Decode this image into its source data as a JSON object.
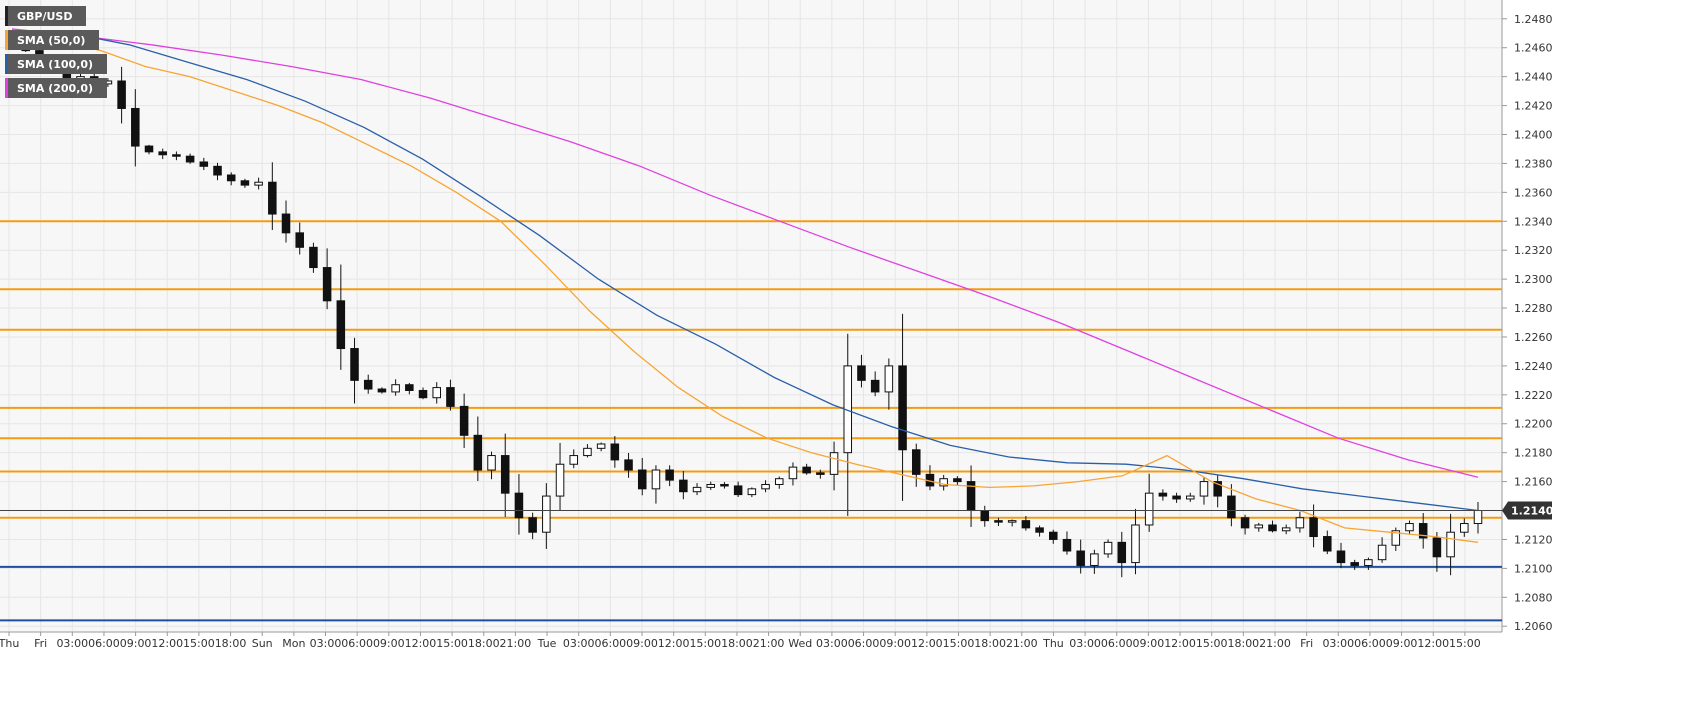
{
  "chart_data": {
    "type": "candlestick",
    "symbol": "GBP/USD",
    "price_axis": {
      "min": 1.2056,
      "max": 1.2493,
      "ticks": [
        "1.2480",
        "1.2460",
        "1.2440",
        "1.2420",
        "1.2400",
        "1.2380",
        "1.2360",
        "1.2340",
        "1.2320",
        "1.2300",
        "1.2280",
        "1.2260",
        "1.2240",
        "1.2220",
        "1.2200",
        "1.2180",
        "1.2160",
        "1.2140",
        "1.2120",
        "1.2100",
        "1.2080",
        "1.2060"
      ],
      "current_price_label": "1.21401",
      "current_price": 1.214
    },
    "time_axis": {
      "labels": [
        "Thu",
        "Fri",
        "03:00",
        "06:00",
        "09:00",
        "12:00",
        "15:00",
        "18:00",
        "Sun",
        "Mon",
        "03:00",
        "06:00",
        "09:00",
        "12:00",
        "15:00",
        "18:00",
        "21:00",
        "Tue",
        "03:00",
        "06:00",
        "09:00",
        "12:00",
        "15:00",
        "18:00",
        "21:00",
        "Wed",
        "03:00",
        "06:00",
        "09:00",
        "12:00",
        "15:00",
        "18:00",
        "21:00",
        "Thu",
        "03:00",
        "06:00",
        "09:00",
        "12:00",
        "15:00",
        "18:00",
        "21:00",
        "Fri",
        "03:00",
        "06:00",
        "09:00",
        "12:00",
        "15:00"
      ]
    },
    "legend": [
      {
        "label": "GBP/USD",
        "color": "#222222"
      },
      {
        "label": "SMA (50,0)",
        "color": "#f7a535"
      },
      {
        "label": "SMA (100,0)",
        "color": "#2a5fa8"
      },
      {
        "label": "SMA (200,0)",
        "color": "#e040e0"
      }
    ],
    "horizontal_levels": [
      {
        "price": 1.234,
        "color": "#f39c12"
      },
      {
        "price": 1.2293,
        "color": "#f39c12"
      },
      {
        "price": 1.2265,
        "color": "#f39c12"
      },
      {
        "price": 1.2211,
        "color": "#f39c12"
      },
      {
        "price": 1.219,
        "color": "#f39c12"
      },
      {
        "price": 1.2167,
        "color": "#f39c12"
      },
      {
        "price": 1.2135,
        "color": "#f39c12"
      },
      {
        "price": 1.2101,
        "color": "#1f4e9c"
      },
      {
        "price": 1.2064,
        "color": "#1f4e9c"
      }
    ],
    "close_series": [
      1.2462,
      1.2458,
      1.2452,
      1.2447,
      1.2436,
      1.244,
      1.2435,
      1.2437,
      1.2418,
      1.2392,
      1.2388,
      1.2386,
      1.2385,
      1.2381,
      1.2378,
      1.2372,
      1.2368,
      1.2365,
      1.2367,
      1.2345,
      1.2332,
      1.2322,
      1.2308,
      1.2285,
      1.2252,
      1.223,
      1.2224,
      1.2222,
      1.2227,
      1.2223,
      1.2218,
      1.2225,
      1.2212,
      1.2192,
      1.2168,
      1.2178,
      1.2152,
      1.2135,
      1.2125,
      1.215,
      1.2172,
      1.2178,
      1.2183,
      1.2186,
      1.2175,
      1.2168,
      1.2155,
      1.2168,
      1.2161,
      1.2153,
      1.2156,
      1.2158,
      1.2157,
      1.2151,
      1.2155,
      1.2158,
      1.2162,
      1.217,
      1.2166,
      1.2165,
      1.218,
      1.224,
      1.223,
      1.2222,
      1.224,
      1.2182,
      1.2165,
      1.2157,
      1.2162,
      1.216,
      1.214,
      1.2133,
      1.2132,
      1.2133,
      1.2128,
      1.2125,
      1.212,
      1.2112,
      1.2102,
      1.211,
      1.2118,
      1.2104,
      1.213,
      1.2152,
      1.215,
      1.2148,
      1.215,
      1.216,
      1.215,
      1.2135,
      1.2128,
      1.213,
      1.2126,
      1.2128,
      1.2135,
      1.2122,
      1.2112,
      1.2104,
      1.2102,
      1.2106,
      1.2116,
      1.2126,
      1.2131,
      1.2121,
      1.2108,
      1.2125,
      1.2131,
      1.214
    ],
    "sma50": [
      1.247,
      1.2465,
      1.2458,
      1.2447,
      1.244,
      1.243,
      1.242,
      1.2408,
      1.2393,
      1.2378,
      1.236,
      1.234,
      1.231,
      1.2278,
      1.225,
      1.2225,
      1.2205,
      1.219,
      1.218,
      1.2172,
      1.2165,
      1.2158,
      1.2156,
      1.2157,
      1.216,
      1.2164,
      1.2178,
      1.216,
      1.2148,
      1.214,
      1.2128,
      1.2125,
      1.2122,
      1.2118
    ],
    "sma100": [
      1.2472,
      1.247,
      1.2462,
      1.245,
      1.2438,
      1.2423,
      1.2405,
      1.2383,
      1.2357,
      1.233,
      1.23,
      1.2275,
      1.2255,
      1.2232,
      1.2213,
      1.2198,
      1.2185,
      1.2177,
      1.2173,
      1.2172,
      1.2168,
      1.2162,
      1.2155,
      1.215,
      1.2145,
      1.214
    ],
    "sma200": [
      1.2473,
      1.2468,
      1.2462,
      1.2455,
      1.2447,
      1.2438,
      1.2425,
      1.241,
      1.2395,
      1.2378,
      1.2358,
      1.234,
      1.2322,
      1.2305,
      1.2288,
      1.227,
      1.225,
      1.223,
      1.221,
      1.219,
      1.2175,
      1.2163
    ]
  }
}
